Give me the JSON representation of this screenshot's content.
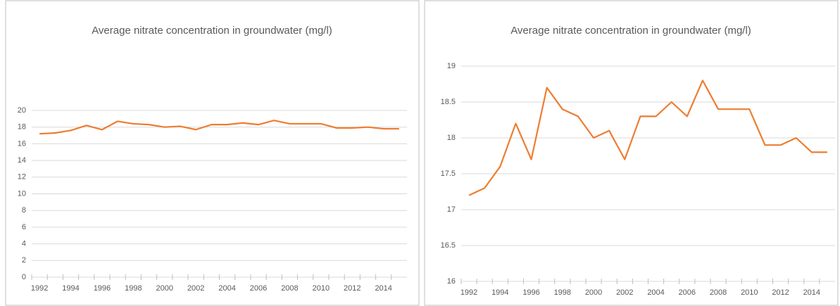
{
  "chart_data": [
    {
      "type": "line",
      "title": "Average nitrate concentration in groundwater (mg/l)",
      "categories": [
        "1992",
        null,
        "1994",
        null,
        "1996",
        null,
        "1998",
        null,
        "2000",
        null,
        "2002",
        null,
        "2004",
        null,
        "2006",
        null,
        "2008",
        null,
        "2010",
        null,
        "2012",
        null,
        "2014",
        null
      ],
      "values": [
        17.2,
        17.3,
        17.6,
        18.2,
        17.7,
        18.7,
        18.4,
        18.3,
        18.0,
        18.1,
        17.7,
        18.3,
        18.3,
        18.5,
        18.3,
        18.8,
        18.4,
        18.4,
        18.4,
        17.9,
        17.9,
        18.0,
        17.8,
        17.8
      ],
      "color": "#ed7d31",
      "ylim": [
        0,
        20
      ],
      "yticks": [
        0,
        2,
        4,
        6,
        8,
        10,
        12,
        14,
        16,
        18,
        20
      ],
      "grid": true
    },
    {
      "type": "line",
      "title": "Average nitrate concentration in groundwater (mg/l)",
      "categories": [
        "1992",
        null,
        "1994",
        null,
        "1996",
        null,
        "1998",
        null,
        "2000",
        null,
        "2002",
        null,
        "2004",
        null,
        "2006",
        null,
        "2008",
        null,
        "2010",
        null,
        "2012",
        null,
        "2014",
        null
      ],
      "values": [
        17.2,
        17.3,
        17.6,
        18.2,
        17.7,
        18.7,
        18.4,
        18.3,
        18.0,
        18.1,
        17.7,
        18.3,
        18.3,
        18.5,
        18.3,
        18.8,
        18.4,
        18.4,
        18.4,
        17.9,
        17.9,
        18.0,
        17.8,
        17.8
      ],
      "color": "#ed7d31",
      "ylim": [
        16,
        19
      ],
      "yticks": [
        16,
        16.5,
        17,
        17.5,
        18,
        18.5,
        19
      ],
      "grid": true
    }
  ]
}
